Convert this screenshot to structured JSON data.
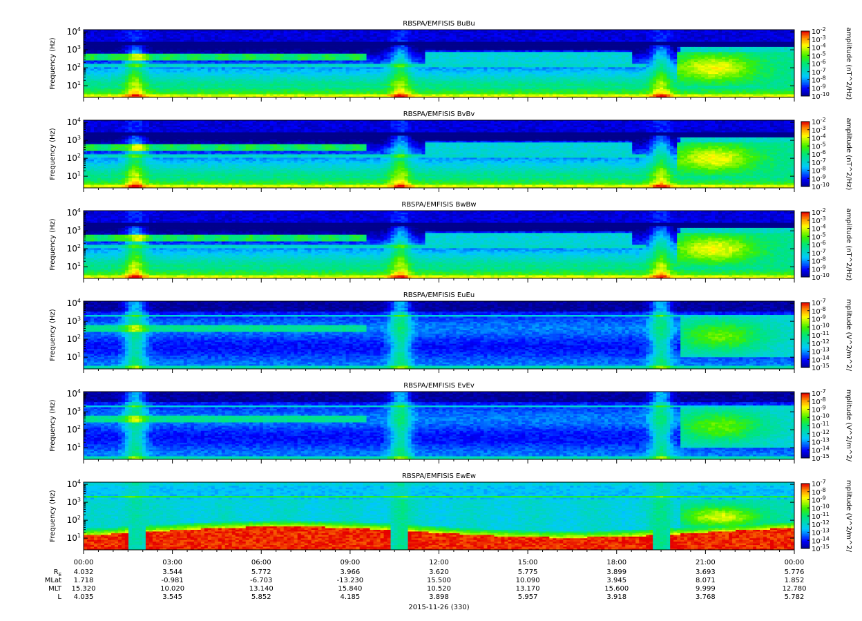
{
  "chart_data": {
    "type": "heatmap",
    "panels": [
      {
        "title": "RBSPA/EMFISIS  BuBu",
        "ylabel": "Frequency (Hz)",
        "colorbar_label": "amplitude (nT^2/Hz)",
        "clim_exp": [
          -10,
          -2
        ],
        "kind": "B"
      },
      {
        "title": "RBSPA/EMFISIS  BvBv",
        "ylabel": "Frequency (Hz)",
        "colorbar_label": "amplitude (nT^2/Hz)",
        "clim_exp": [
          -10,
          -2
        ],
        "kind": "B"
      },
      {
        "title": "RBSPA/EMFISIS  BwBw",
        "ylabel": "Frequency (Hz)",
        "colorbar_label": "amplitude (nT^2/Hz)",
        "clim_exp": [
          -10,
          -2
        ],
        "kind": "B"
      },
      {
        "title": "RBSPA/EMFISIS  EuEu",
        "ylabel": "Frequency (Hz)",
        "colorbar_label": "mplitude (V^2/m^2/",
        "clim_exp": [
          -15,
          -7
        ],
        "kind": "E"
      },
      {
        "title": "RBSPA/EMFISIS  EvEv",
        "ylabel": "Frequency (Hz)",
        "colorbar_label": "mplitude (V^2/m^2/",
        "clim_exp": [
          -15,
          -7
        ],
        "kind": "E"
      },
      {
        "title": "RBSPA/EMFISIS  EwEw",
        "ylabel": "Frequency (Hz)",
        "colorbar_label": "mplitude (V^2/m^2/",
        "clim_exp": [
          -15,
          -7
        ],
        "kind": "Ew"
      }
    ],
    "y_ticks": [
      "10^1",
      "10^2",
      "10^3",
      "10^4"
    ],
    "y_scale": "log",
    "x_ticks": [
      "00:00",
      "03:00",
      "06:00",
      "09:00",
      "12:00",
      "15:00",
      "18:00",
      "21:00",
      "00:00"
    ],
    "x_range_hours": [
      0,
      24
    ],
    "ephemeris": {
      "labels": [
        "RE",
        "MLat",
        "MLT",
        "L"
      ],
      "rows": [
        [
          "4.032",
          "3.544",
          "5.772",
          "3.966",
          "3.620",
          "5.775",
          "3.899",
          "3.693",
          "5.776"
        ],
        [
          "1.718",
          "-0.981",
          "-6.703",
          "-13.230",
          "15.500",
          "10.090",
          "3.945",
          "8.071",
          "1.852"
        ],
        [
          "15.320",
          "10.020",
          "13.140",
          "15.840",
          "10.520",
          "13.170",
          "15.600",
          "9.999",
          "12.780"
        ],
        [
          "4.035",
          "3.545",
          "5.852",
          "4.185",
          "3.898",
          "5.957",
          "3.918",
          "3.768",
          "5.782"
        ]
      ]
    },
    "xlabel": "2015-11-26 (330)"
  }
}
